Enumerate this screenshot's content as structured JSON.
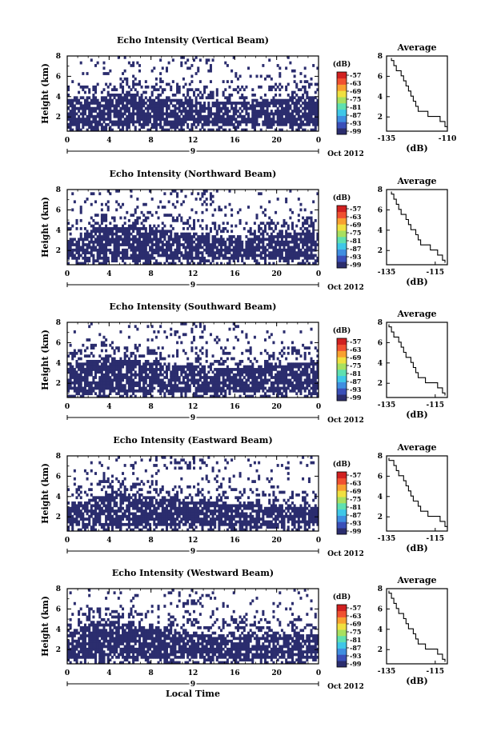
{
  "chart_data": [
    {
      "type": "heatmap",
      "title": "Echo Intensity (Vertical Beam)",
      "ylabel": "Height (km)",
      "xticks": [
        "0",
        "4",
        "8",
        "12",
        "16",
        "20",
        "0"
      ],
      "yticks": [
        "2",
        "4",
        "6",
        "8"
      ],
      "xlim": [
        0,
        24
      ],
      "ylim": [
        0.6,
        8
      ],
      "day_label": "9",
      "month_label": "Oct 2012",
      "colorbar": {
        "unit": "(dB)",
        "ticks": [
          "-57",
          "-63",
          "-69",
          "-75",
          "-81",
          "-87",
          "-93",
          "-99"
        ]
      },
      "profile": {
        "title": "Average",
        "xlabel": "(dB)",
        "xticks": [
          "-135",
          "-110"
        ],
        "xlim": [
          -135,
          -110
        ],
        "heights": [
          0.8,
          1.3,
          1.8,
          2.3,
          2.8,
          3.3,
          3.8,
          4.3,
          4.8,
          5.3,
          5.8,
          6.3,
          6.8,
          7.3,
          7.8
        ],
        "values": [
          -110,
          -111,
          -113,
          -118,
          -122,
          -123,
          -124,
          -125,
          -126,
          -127,
          -128,
          -129,
          -131,
          -132,
          -133
        ]
      },
      "band_top": [
        3.7,
        4.0,
        4.2,
        4.3,
        4.0,
        3.8,
        3.6,
        3.5,
        3.5,
        3.6,
        3.7,
        4.0,
        3.9
      ]
    },
    {
      "type": "heatmap",
      "title": "Echo Intensity (Northward Beam)",
      "ylabel": "Height (km)",
      "xticks": [
        "0",
        "4",
        "8",
        "12",
        "16",
        "20",
        "0"
      ],
      "yticks": [
        "2",
        "4",
        "6",
        "8"
      ],
      "xlim": [
        0,
        24
      ],
      "ylim": [
        0.6,
        8
      ],
      "day_label": "9",
      "month_label": "Oct 2012",
      "colorbar": {
        "unit": "(dB)",
        "ticks": [
          "-57",
          "-63",
          "-69",
          "-75",
          "-81",
          "-87",
          "-93",
          "-99"
        ]
      },
      "profile": {
        "title": "Average",
        "xlabel": "(dB)",
        "xticks": [
          "-135",
          "-115"
        ],
        "xlim": [
          -135,
          -110
        ],
        "heights": [
          0.8,
          1.3,
          1.8,
          2.3,
          2.8,
          3.3,
          3.8,
          4.3,
          4.8,
          5.3,
          5.8,
          6.3,
          6.8,
          7.3,
          7.8
        ],
        "values": [
          -111,
          -112,
          -114,
          -117,
          -121,
          -122,
          -123,
          -125,
          -126,
          -127,
          -129,
          -130,
          -131,
          -132,
          -133
        ]
      },
      "band_top": [
        3.2,
        4.0,
        4.4,
        4.5,
        4.2,
        3.9,
        3.6,
        3.4,
        3.3,
        3.2,
        3.5,
        3.8,
        3.6
      ]
    },
    {
      "type": "heatmap",
      "title": "Echo Intensity (Southward Beam)",
      "ylabel": "Height (km)",
      "xticks": [
        "0",
        "4",
        "8",
        "12",
        "16",
        "20",
        "0"
      ],
      "yticks": [
        "2",
        "4",
        "6",
        "8"
      ],
      "xlim": [
        0,
        24
      ],
      "ylim": [
        0.6,
        8
      ],
      "day_label": "9",
      "month_label": "Oct 2012",
      "colorbar": {
        "unit": "(dB)",
        "ticks": [
          "-57",
          "-63",
          "-69",
          "-75",
          "-81",
          "-87",
          "-93",
          "-99"
        ]
      },
      "profile": {
        "title": "Average",
        "xlabel": "(dB)",
        "xticks": [
          "-135",
          "-115"
        ],
        "xlim": [
          -135,
          -110
        ],
        "heights": [
          0.8,
          1.3,
          1.8,
          2.3,
          2.8,
          3.3,
          3.8,
          4.3,
          4.8,
          5.3,
          5.8,
          6.3,
          6.8,
          7.3,
          7.8
        ],
        "values": [
          -111,
          -112,
          -114,
          -119,
          -122,
          -123,
          -124,
          -125,
          -127,
          -128,
          -129,
          -130,
          -132,
          -133,
          -134
        ]
      },
      "band_top": [
        3.5,
        4.2,
        4.6,
        4.3,
        4.0,
        3.8,
        3.7,
        3.6,
        3.6,
        3.7,
        3.8,
        4.0,
        4.1
      ]
    },
    {
      "type": "heatmap",
      "title": "Echo Intensity (Eastward Beam)",
      "ylabel": "Height (km)",
      "xticks": [
        "0",
        "4",
        "8",
        "12",
        "16",
        "20",
        "0"
      ],
      "yticks": [
        "2",
        "4",
        "6",
        "8"
      ],
      "xlim": [
        0,
        24
      ],
      "ylim": [
        0.6,
        8
      ],
      "day_label": "9",
      "month_label": "Oct 2012",
      "colorbar": {
        "unit": "(dB)",
        "ticks": [
          "-57",
          "-63",
          "-69",
          "-75",
          "-81",
          "-87",
          "-93",
          "-99"
        ]
      },
      "profile": {
        "title": "Average",
        "xlabel": "(dB)",
        "xticks": [
          "-135",
          "-115"
        ],
        "xlim": [
          -135,
          -110
        ],
        "heights": [
          0.8,
          1.3,
          1.8,
          2.3,
          2.8,
          3.3,
          3.8,
          4.3,
          4.8,
          5.3,
          5.8,
          6.3,
          6.8,
          7.3,
          7.8
        ],
        "values": [
          -110,
          -111,
          -113,
          -118,
          -121,
          -122,
          -124,
          -125,
          -126,
          -127,
          -128,
          -130,
          -131,
          -132,
          -134
        ]
      },
      "band_top": [
        3.0,
        3.8,
        4.3,
        4.4,
        4.0,
        3.7,
        3.5,
        3.4,
        3.3,
        3.2,
        3.0,
        3.0,
        3.0
      ]
    },
    {
      "type": "heatmap",
      "title": "Echo Intensity (Westward Beam)",
      "ylabel": "Height (km)",
      "xlabel": "Local Time",
      "xticks": [
        "0",
        "4",
        "8",
        "12",
        "16",
        "20",
        "0"
      ],
      "yticks": [
        "2",
        "4",
        "6",
        "8"
      ],
      "xlim": [
        0,
        24
      ],
      "ylim": [
        0.6,
        8
      ],
      "day_label": "9",
      "month_label": "Oct 2012",
      "colorbar": {
        "unit": "(dB)",
        "ticks": [
          "-57",
          "-63",
          "-69",
          "-75",
          "-81",
          "-87",
          "-93",
          "-99"
        ]
      },
      "profile": {
        "title": "Average",
        "xlabel": "(dB)",
        "xticks": [
          "-135",
          "-115"
        ],
        "xlim": [
          -135,
          -110
        ],
        "heights": [
          0.8,
          1.3,
          1.8,
          2.3,
          2.8,
          3.3,
          3.8,
          4.3,
          4.8,
          5.3,
          5.8,
          6.3,
          6.8,
          7.3,
          7.8
        ],
        "values": [
          -111,
          -112,
          -114,
          -119,
          -122,
          -123,
          -124,
          -126,
          -127,
          -128,
          -130,
          -131,
          -132,
          -133,
          -134
        ]
      },
      "band_top": [
        3.6,
        4.5,
        4.8,
        4.6,
        4.2,
        3.9,
        3.6,
        3.5,
        3.5,
        3.6,
        3.4,
        3.6,
        3.5
      ]
    }
  ],
  "colors": {
    "echo": "#2b2d6e",
    "axis": "#000000",
    "colorbar": [
      "#2b2d6e",
      "#3a4fb8",
      "#3f8ee0",
      "#3fc7e8",
      "#5fe0b0",
      "#a8e060",
      "#f0e040",
      "#f8a030",
      "#f05030",
      "#d02020"
    ]
  }
}
